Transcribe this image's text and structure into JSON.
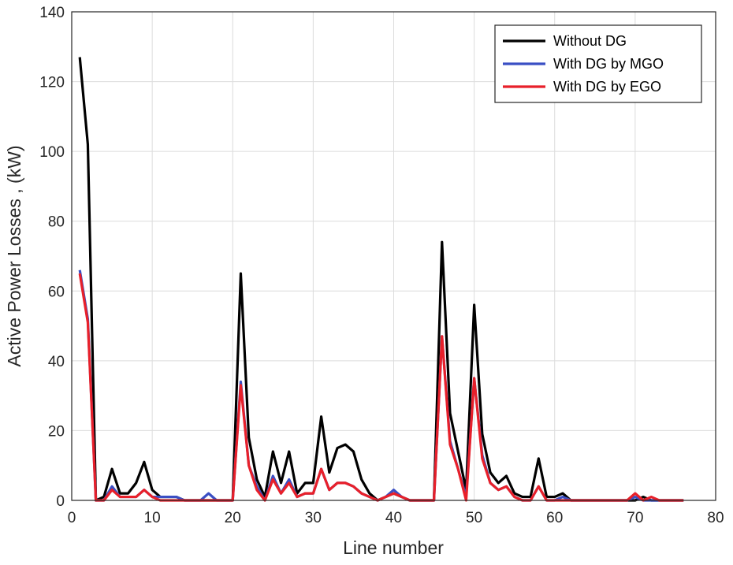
{
  "chart_data": {
    "type": "line",
    "xlabel": "Line number",
    "ylabel": "Active Power Losses , (kW)",
    "xlim": [
      0,
      80
    ],
    "ylim": [
      0,
      140
    ],
    "xticks": [
      0,
      10,
      20,
      30,
      40,
      50,
      60,
      70,
      80
    ],
    "yticks": [
      0,
      20,
      40,
      60,
      80,
      100,
      120,
      140
    ],
    "grid": true,
    "legend_position": "top-right",
    "x": [
      1,
      2,
      3,
      4,
      5,
      6,
      7,
      8,
      9,
      10,
      11,
      12,
      13,
      14,
      15,
      16,
      17,
      18,
      19,
      20,
      21,
      22,
      23,
      24,
      25,
      26,
      27,
      28,
      29,
      30,
      31,
      32,
      33,
      34,
      35,
      36,
      37,
      38,
      39,
      40,
      41,
      42,
      43,
      44,
      45,
      46,
      47,
      48,
      49,
      50,
      51,
      52,
      53,
      54,
      55,
      56,
      57,
      58,
      59,
      60,
      61,
      62,
      63,
      64,
      65,
      66,
      67,
      68,
      69,
      70,
      71,
      72,
      73,
      74,
      75,
      76
    ],
    "series": [
      {
        "name": "Without DG",
        "color": "#000000",
        "values": [
          127,
          102,
          0,
          1,
          9,
          2,
          2,
          5,
          11,
          3,
          1,
          1,
          1,
          0,
          0,
          0,
          0,
          0,
          0,
          0,
          65,
          18,
          6,
          1,
          14,
          5,
          14,
          2,
          5,
          5,
          24,
          8,
          15,
          16,
          14,
          6,
          2,
          0,
          1,
          2,
          1,
          0,
          0,
          0,
          0,
          74,
          25,
          14,
          3,
          56,
          19,
          8,
          5,
          7,
          2,
          1,
          1,
          12,
          1,
          1,
          2,
          0,
          0,
          0,
          0,
          0,
          0,
          0,
          0,
          0,
          1,
          0,
          0,
          0,
          0,
          0
        ]
      },
      {
        "name": "With DG by MGO",
        "color": "#3a4fc4",
        "values": [
          66,
          52,
          0,
          0,
          4,
          1,
          1,
          1,
          3,
          1,
          1,
          1,
          1,
          0,
          0,
          0,
          2,
          0,
          0,
          0,
          34,
          10,
          4,
          0,
          7,
          2,
          6,
          1,
          2,
          2,
          9,
          3,
          5,
          5,
          4,
          2,
          1,
          0,
          1,
          3,
          1,
          0,
          0,
          0,
          0,
          47,
          17,
          9,
          1,
          35,
          13,
          5,
          3,
          4,
          1,
          0,
          0,
          4,
          0,
          0,
          1,
          0,
          0,
          0,
          0,
          0,
          0,
          0,
          0,
          1,
          0,
          0,
          0,
          0,
          0,
          0
        ]
      },
      {
        "name": "With DG by EGO",
        "color": "#e8202a",
        "values": [
          65,
          51,
          0,
          0,
          3,
          1,
          1,
          1,
          3,
          1,
          0,
          0,
          0,
          0,
          0,
          0,
          0,
          0,
          0,
          0,
          33,
          10,
          3,
          0,
          6,
          2,
          5,
          1,
          2,
          2,
          9,
          3,
          5,
          5,
          4,
          2,
          1,
          0,
          1,
          2,
          1,
          0,
          0,
          0,
          0,
          47,
          16,
          9,
          0,
          35,
          12,
          5,
          3,
          4,
          1,
          0,
          0,
          4,
          0,
          0,
          0,
          0,
          0,
          0,
          0,
          0,
          0,
          0,
          0,
          2,
          0,
          1,
          0,
          0,
          0,
          0
        ]
      }
    ]
  }
}
